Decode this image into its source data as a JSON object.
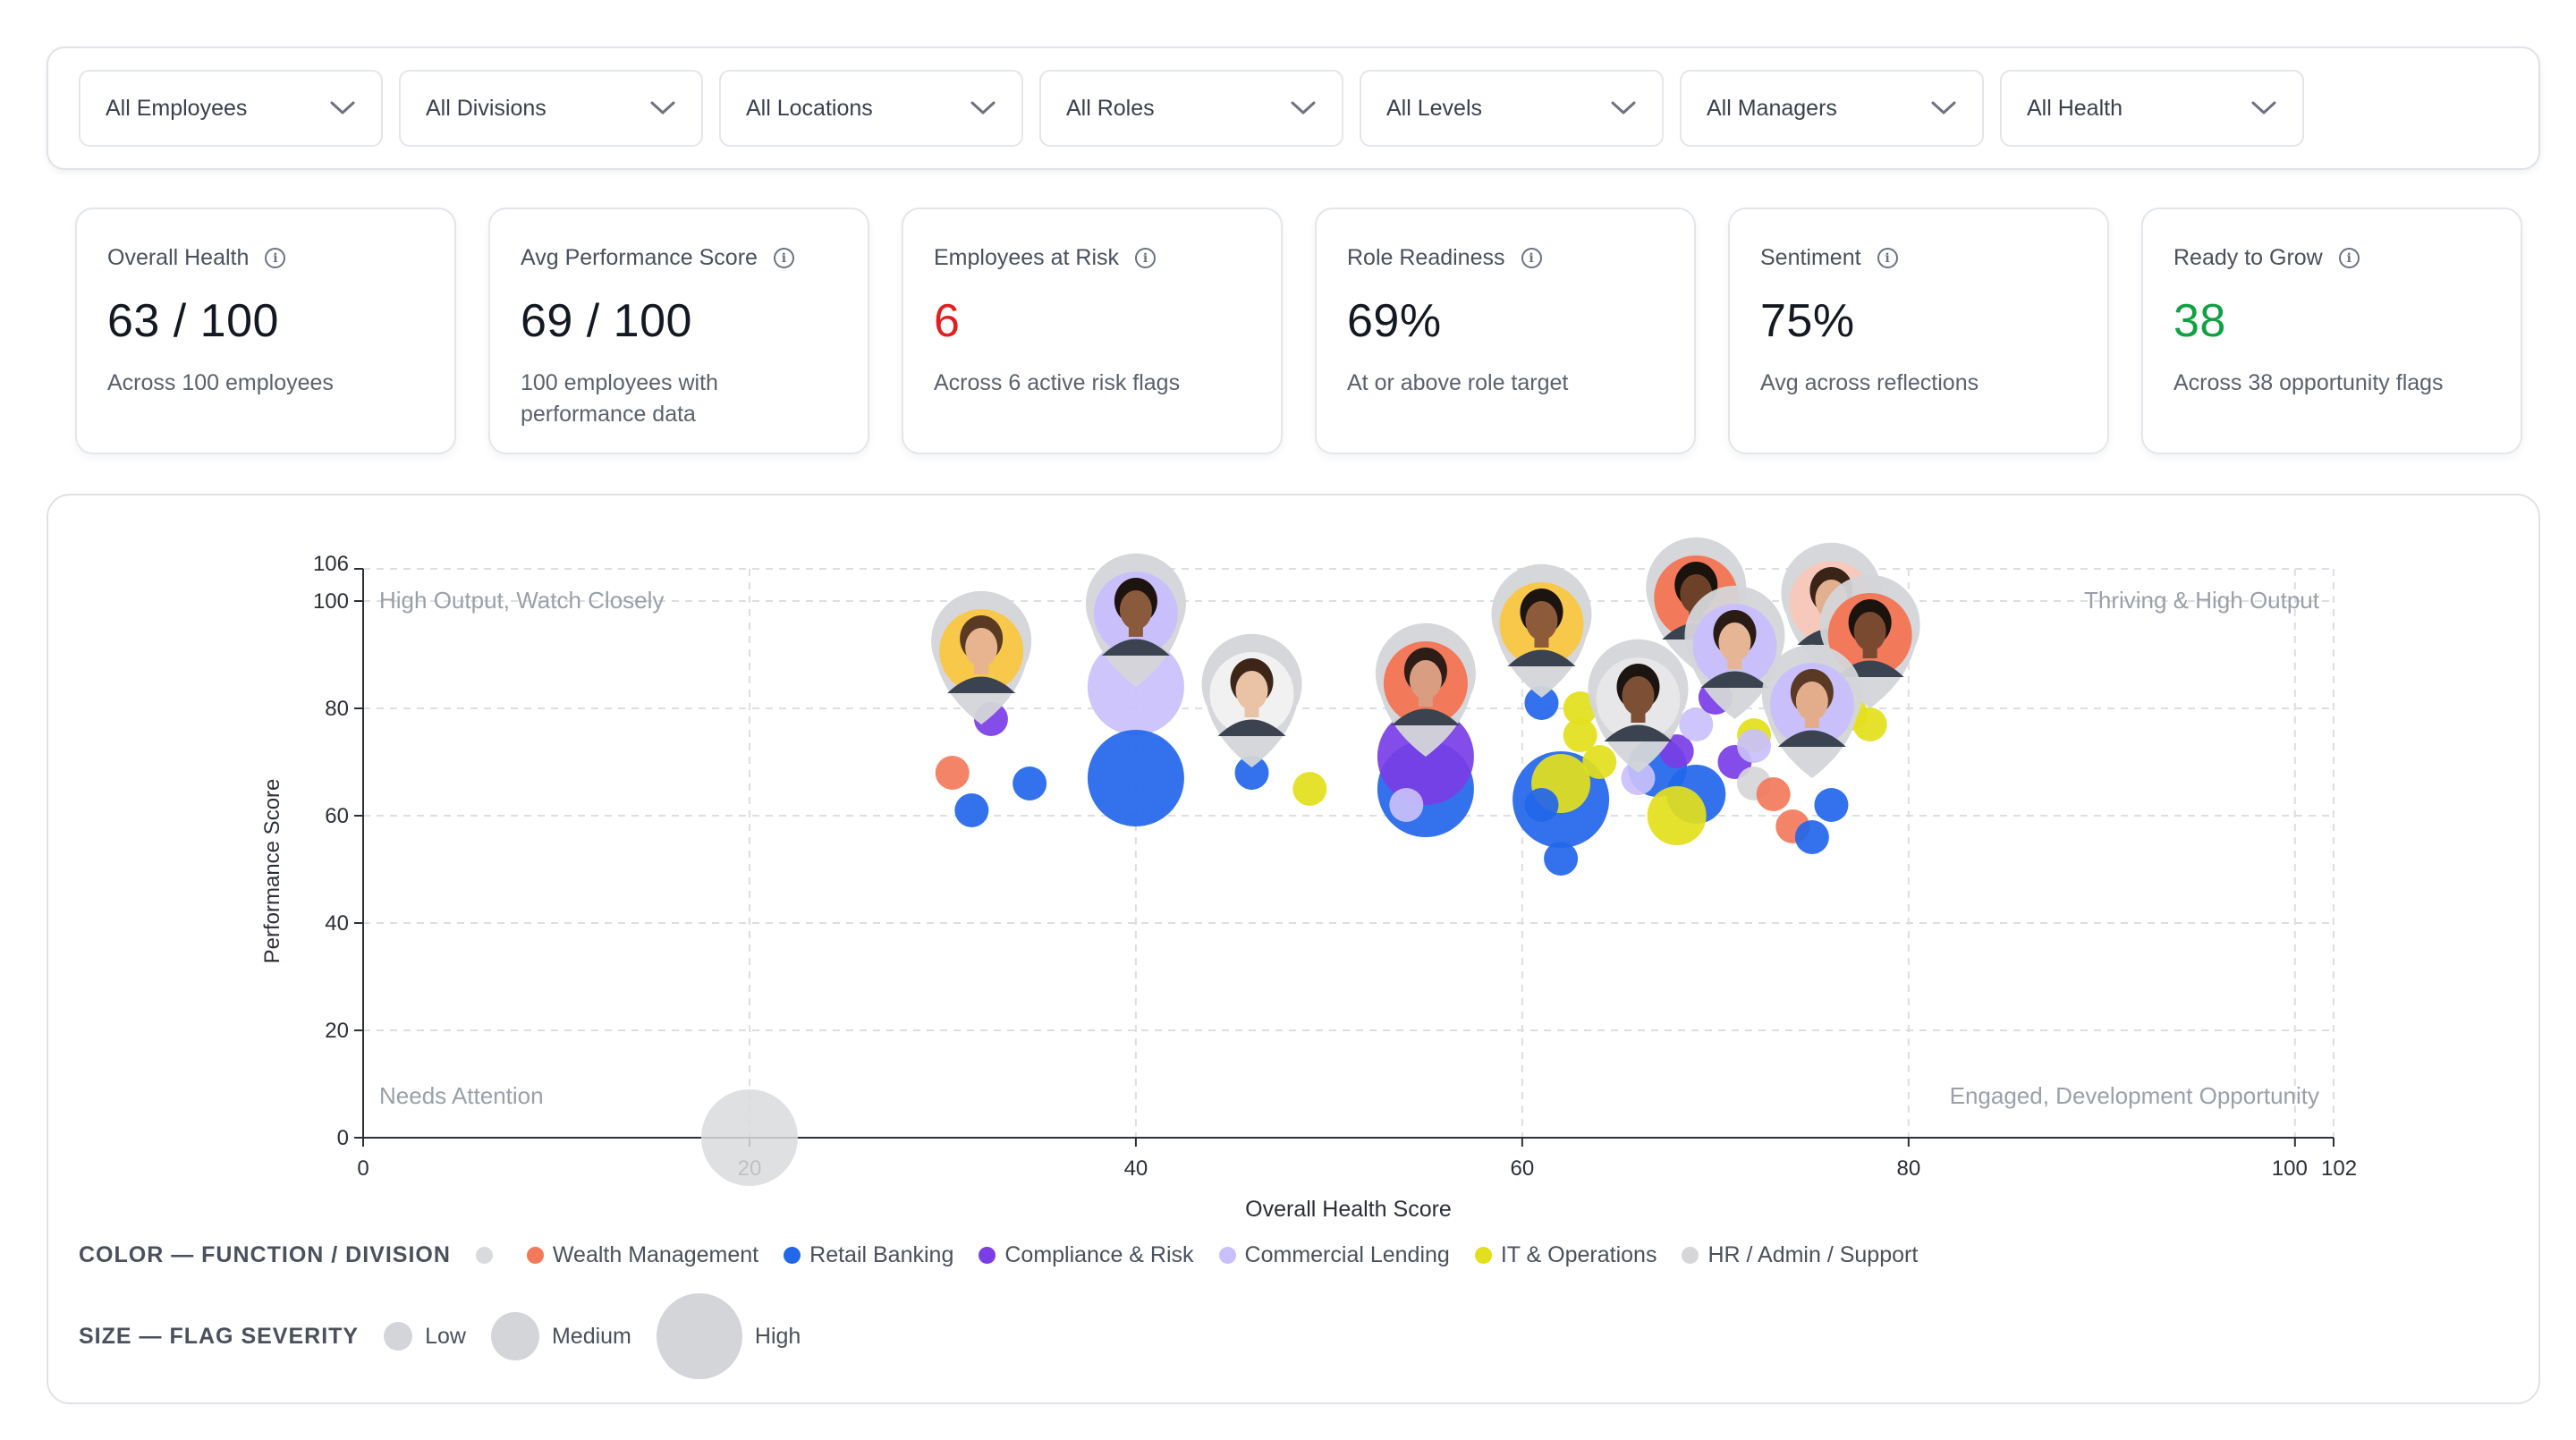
{
  "filters": [
    {
      "label": "All Employees",
      "icon": "chevron-down-icon"
    },
    {
      "label": "All Divisions",
      "icon": "chevron-down-icon"
    },
    {
      "label": "All Locations",
      "icon": "chevron-down-icon"
    },
    {
      "label": "All Roles",
      "icon": "chevron-down-icon"
    },
    {
      "label": "All Levels",
      "icon": "chevron-down-icon"
    },
    {
      "label": "All Managers",
      "icon": "chevron-down-icon"
    },
    {
      "label": "All Health",
      "icon": "chevron-down-icon"
    }
  ],
  "kpis": [
    {
      "title": "Overall Health",
      "value": "63 / 100",
      "subtitle": "Across 100 employees",
      "value_color": "#141821"
    },
    {
      "title": "Avg Performance Score",
      "value": "69 / 100",
      "subtitle": "100 employees with performance data",
      "value_color": "#141821"
    },
    {
      "title": "Employees at Risk",
      "value": "6",
      "subtitle": "Across 6 active risk flags",
      "value_color": "#e21e1e"
    },
    {
      "title": "Role Readiness",
      "value": "69%",
      "subtitle": "At or above role target",
      "value_color": "#141821"
    },
    {
      "title": "Sentiment",
      "value": "75%",
      "subtitle": "Avg across reflections",
      "value_color": "#141821"
    },
    {
      "title": "Ready to Grow",
      "value": "38",
      "subtitle": "Across 38 opportunity flags",
      "value_color": "#12a044"
    }
  ],
  "chart_data": {
    "type": "scatter",
    "xlabel": "Overall Health Score",
    "ylabel": "Performance Score",
    "xlim": [
      0,
      102
    ],
    "ylim": [
      0,
      106
    ],
    "x_ticks": [
      0,
      20,
      40,
      60,
      80,
      100,
      102
    ],
    "y_ticks": [
      0,
      20,
      40,
      60,
      80,
      100,
      106
    ],
    "grid": true,
    "quadrant_labels": {
      "top_left": "High Output, Watch Closely",
      "top_right": "Thriving & High Output",
      "bottom_left": "Needs Attention",
      "bottom_right": "Engaged, Development Opportunity"
    },
    "series_colors": {
      "Wealth Management": "#f2795a",
      "Retail Banking": "#2266ea",
      "Compliance & Risk": "#7a3de6",
      "Commercial Lending": "#c9c0fb",
      "IT & Operations": "#e3df1c",
      "HR / Admin / Support": "#d6d6d9",
      "Unassigned": "#d9dadd"
    },
    "size_levels": [
      "Low",
      "Medium",
      "High"
    ],
    "points": [
      {
        "x": 20,
        "y": 0,
        "series": "Unassigned",
        "size": "High"
      },
      {
        "x": 30.5,
        "y": 68,
        "series": "Wealth Management",
        "size": "Low"
      },
      {
        "x": 31.5,
        "y": 61,
        "series": "Retail Banking",
        "size": "Low"
      },
      {
        "x": 34.5,
        "y": 66,
        "series": "Retail Banking",
        "size": "Low"
      },
      {
        "x": 32.5,
        "y": 78,
        "series": "Compliance & Risk",
        "size": "Low"
      },
      {
        "x": 40,
        "y": 84,
        "series": "Commercial Lending",
        "size": "High"
      },
      {
        "x": 40,
        "y": 67,
        "series": "Retail Banking",
        "size": "High"
      },
      {
        "x": 46,
        "y": 68,
        "series": "Retail Banking",
        "size": "Low"
      },
      {
        "x": 49,
        "y": 65,
        "series": "IT & Operations",
        "size": "Low"
      },
      {
        "x": 55,
        "y": 65,
        "series": "Retail Banking",
        "size": "High"
      },
      {
        "x": 55,
        "y": 71,
        "series": "Compliance & Risk",
        "size": "High"
      },
      {
        "x": 54,
        "y": 62,
        "series": "Commercial Lending",
        "size": "Low"
      },
      {
        "x": 61,
        "y": 81,
        "series": "Retail Banking",
        "size": "Low"
      },
      {
        "x": 61,
        "y": 62,
        "series": "Retail Banking",
        "size": "Low"
      },
      {
        "x": 62,
        "y": 63,
        "series": "Retail Banking",
        "size": "High"
      },
      {
        "x": 62,
        "y": 66,
        "series": "IT & Operations",
        "size": "Medium"
      },
      {
        "x": 62,
        "y": 52,
        "series": "Retail Banking",
        "size": "Low"
      },
      {
        "x": 63,
        "y": 80,
        "series": "IT & Operations",
        "size": "Low"
      },
      {
        "x": 63,
        "y": 75,
        "series": "IT & Operations",
        "size": "Low"
      },
      {
        "x": 64,
        "y": 70,
        "series": "IT & Operations",
        "size": "Low"
      },
      {
        "x": 66,
        "y": 67,
        "series": "Commercial Lending",
        "size": "Low"
      },
      {
        "x": 67,
        "y": 69,
        "series": "Retail Banking",
        "size": "Medium"
      },
      {
        "x": 68,
        "y": 72,
        "series": "Compliance & Risk",
        "size": "Low"
      },
      {
        "x": 69,
        "y": 64,
        "series": "Retail Banking",
        "size": "Medium"
      },
      {
        "x": 68,
        "y": 60,
        "series": "IT & Operations",
        "size": "Medium"
      },
      {
        "x": 69,
        "y": 77,
        "series": "Commercial Lending",
        "size": "Low"
      },
      {
        "x": 70,
        "y": 82,
        "series": "Compliance & Risk",
        "size": "Low"
      },
      {
        "x": 71,
        "y": 70,
        "series": "Compliance & Risk",
        "size": "Low"
      },
      {
        "x": 72,
        "y": 75,
        "series": "IT & Operations",
        "size": "Low"
      },
      {
        "x": 72,
        "y": 66,
        "series": "HR / Admin / Support",
        "size": "Low"
      },
      {
        "x": 73,
        "y": 64,
        "series": "Wealth Management",
        "size": "Low"
      },
      {
        "x": 74,
        "y": 77,
        "series": "Wealth Management",
        "size": "Low"
      },
      {
        "x": 74,
        "y": 58,
        "series": "Wealth Management",
        "size": "Low"
      },
      {
        "x": 75,
        "y": 56,
        "series": "Retail Banking",
        "size": "Low"
      },
      {
        "x": 76,
        "y": 62,
        "series": "Retail Banking",
        "size": "Low"
      },
      {
        "x": 77,
        "y": 79,
        "series": "IT & Operations",
        "size": "Low"
      },
      {
        "x": 78,
        "y": 77,
        "series": "IT & Operations",
        "size": "Low"
      },
      {
        "x": 72,
        "y": 73,
        "series": "Commercial Lending",
        "size": "Low"
      }
    ],
    "avatar_pins": [
      {
        "x": 32,
        "y": 77,
        "ring": "#d4d5d8",
        "bg": "#f7c84a",
        "skin": "#e8b48f",
        "hair": "#5a3a22"
      },
      {
        "x": 40,
        "y": 84,
        "ring": "#d4d5d8",
        "bg": "#c9c0fb",
        "skin": "#8a5a3c",
        "hair": "#1d1410"
      },
      {
        "x": 46,
        "y": 69,
        "ring": "#d4d5d8",
        "bg": "#f1f1f2",
        "skin": "#eac2a6",
        "hair": "#3d2518"
      },
      {
        "x": 55,
        "y": 71,
        "ring": "#d4d5d8",
        "bg": "#f2795a",
        "skin": "#d99e82",
        "hair": "#2e1d16"
      },
      {
        "x": 61,
        "y": 82,
        "ring": "#d4d5d8",
        "bg": "#f7c84a",
        "skin": "#8d5a3a",
        "hair": "#1c1410"
      },
      {
        "x": 66,
        "y": 68,
        "ring": "#d4d5d8",
        "bg": "#e7e7e9",
        "skin": "#7d5035",
        "hair": "#1c1410"
      },
      {
        "x": 69,
        "y": 87,
        "ring": "#d4d5d8",
        "bg": "#f2795a",
        "skin": "#6c4128",
        "hair": "#1a120d"
      },
      {
        "x": 71,
        "y": 78,
        "ring": "#d4d5d8",
        "bg": "#c9c0fb",
        "skin": "#e6b595",
        "hair": "#2a1c14"
      },
      {
        "x": 76,
        "y": 86,
        "ring": "#d4d5d8",
        "bg": "#f7c9bd",
        "skin": "#e2b08e",
        "hair": "#3a2418"
      },
      {
        "x": 78,
        "y": 80,
        "ring": "#d4d5d8",
        "bg": "#f2795a",
        "skin": "#7a4a30",
        "hair": "#1b130e"
      },
      {
        "x": 75,
        "y": 67,
        "ring": "#d4d5d8",
        "bg": "#c9c0fb",
        "skin": "#e3ad8c",
        "hair": "#5a3a24"
      }
    ]
  },
  "legend": {
    "color_title": "COLOR — FUNCTION / DIVISION",
    "color_items": [
      {
        "label": "",
        "color": "#d9dadd"
      },
      {
        "label": "Wealth Management",
        "color": "#f2795a"
      },
      {
        "label": "Retail Banking",
        "color": "#2266ea"
      },
      {
        "label": "Compliance & Risk",
        "color": "#7a3de6"
      },
      {
        "label": "Commercial Lending",
        "color": "#c9c0fb"
      },
      {
        "label": "IT & Operations",
        "color": "#e3df1c"
      },
      {
        "label": "HR / Admin / Support",
        "color": "#d6d6d9"
      }
    ],
    "size_title": "SIZE — FLAG SEVERITY",
    "size_items": [
      {
        "label": "Low"
      },
      {
        "label": "Medium"
      },
      {
        "label": "High"
      }
    ]
  }
}
